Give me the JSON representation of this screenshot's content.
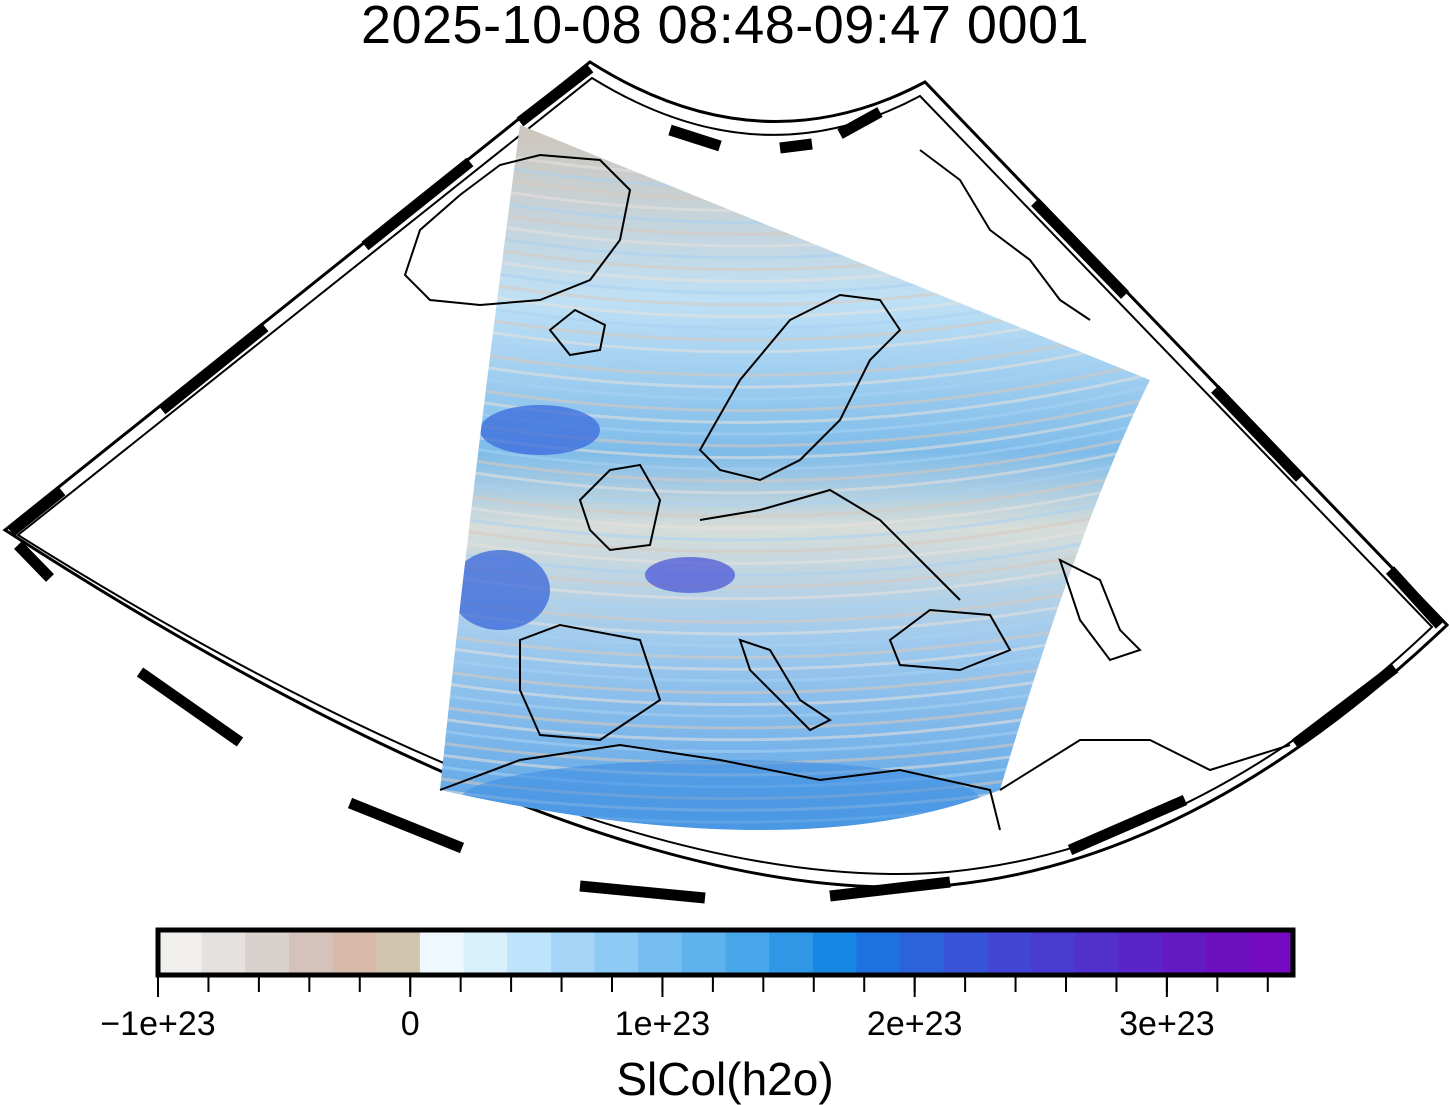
{
  "title": "2025-10-08 08:48-09:47 0001",
  "colorbar": {
    "label": "SlCol(h2o)",
    "ticks": [
      {
        "value": -1e+23,
        "label": "−1e+23"
      },
      {
        "value": 0,
        "label": "0"
      },
      {
        "value": 1e+23,
        "label": "1e+23"
      },
      {
        "value": 2e+23,
        "label": "2e+23"
      },
      {
        "value": 3e+23,
        "label": "3e+23"
      }
    ],
    "min": -1e+23,
    "max": 3.5e+23,
    "bins": [
      "#f1efee",
      "#e4e1df",
      "#d8d1cd",
      "#d5c3bb",
      "#d6b9a8",
      "#d2c5b0",
      "#eef8fe",
      "#d9f0fd",
      "#bee4fb",
      "#a5d6f7",
      "#8dcaf4",
      "#76bef2",
      "#5fb2ee",
      "#48a6ea",
      "#2f97e6",
      "#1687e2",
      "#1e72df",
      "#2c62dc",
      "#3754d8",
      "#4346d4",
      "#4a3bd0",
      "#5230cc",
      "#5a25c8",
      "#641ac3",
      "#6d10bf",
      "#760ac0"
    ]
  },
  "colors": {
    "land_outline": "#000000",
    "frame_dark": "#000000",
    "frame_light": "#ffffff"
  }
}
